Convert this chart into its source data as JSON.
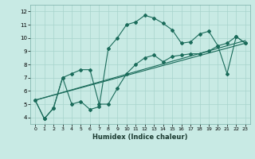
{
  "xlabel": "Humidex (Indice chaleur)",
  "xlim": [
    -0.5,
    23.5
  ],
  "ylim": [
    3.5,
    12.5
  ],
  "yticks": [
    4,
    5,
    6,
    7,
    8,
    9,
    10,
    11,
    12
  ],
  "xticks": [
    0,
    1,
    2,
    3,
    4,
    5,
    6,
    7,
    8,
    9,
    10,
    11,
    12,
    13,
    14,
    15,
    16,
    17,
    18,
    19,
    20,
    21,
    22,
    23
  ],
  "bg_color": "#c8eae4",
  "grid_color": "#a8d4cc",
  "line_color": "#1a6b5a",
  "line1_x": [
    0,
    1,
    2,
    3,
    4,
    5,
    6,
    7,
    8,
    9,
    10,
    11,
    12,
    13,
    14,
    15,
    16,
    17,
    18,
    19,
    20,
    21,
    22,
    23
  ],
  "line1_y": [
    5.3,
    3.9,
    4.7,
    7.0,
    5.0,
    5.2,
    4.6,
    4.8,
    9.2,
    10.0,
    11.0,
    11.2,
    11.7,
    11.5,
    11.1,
    10.6,
    9.6,
    9.7,
    10.3,
    10.5,
    9.4,
    9.6,
    10.1,
    9.6
  ],
  "line2_x": [
    0,
    1,
    2,
    3,
    4,
    5,
    6,
    7,
    8,
    9,
    10,
    11,
    12,
    13,
    14,
    15,
    16,
    17,
    18,
    19,
    20,
    21,
    22,
    23
  ],
  "line2_y": [
    5.3,
    3.9,
    4.7,
    7.0,
    7.3,
    7.6,
    7.6,
    5.0,
    5.0,
    6.2,
    7.3,
    8.0,
    8.5,
    8.7,
    8.2,
    8.6,
    8.7,
    8.8,
    8.8,
    9.0,
    9.4,
    7.3,
    10.1,
    9.6
  ],
  "trend1_x": [
    0,
    23
  ],
  "trend1_y": [
    5.3,
    9.8
  ],
  "trend2_x": [
    0,
    23
  ],
  "trend2_y": [
    5.3,
    9.6
  ]
}
